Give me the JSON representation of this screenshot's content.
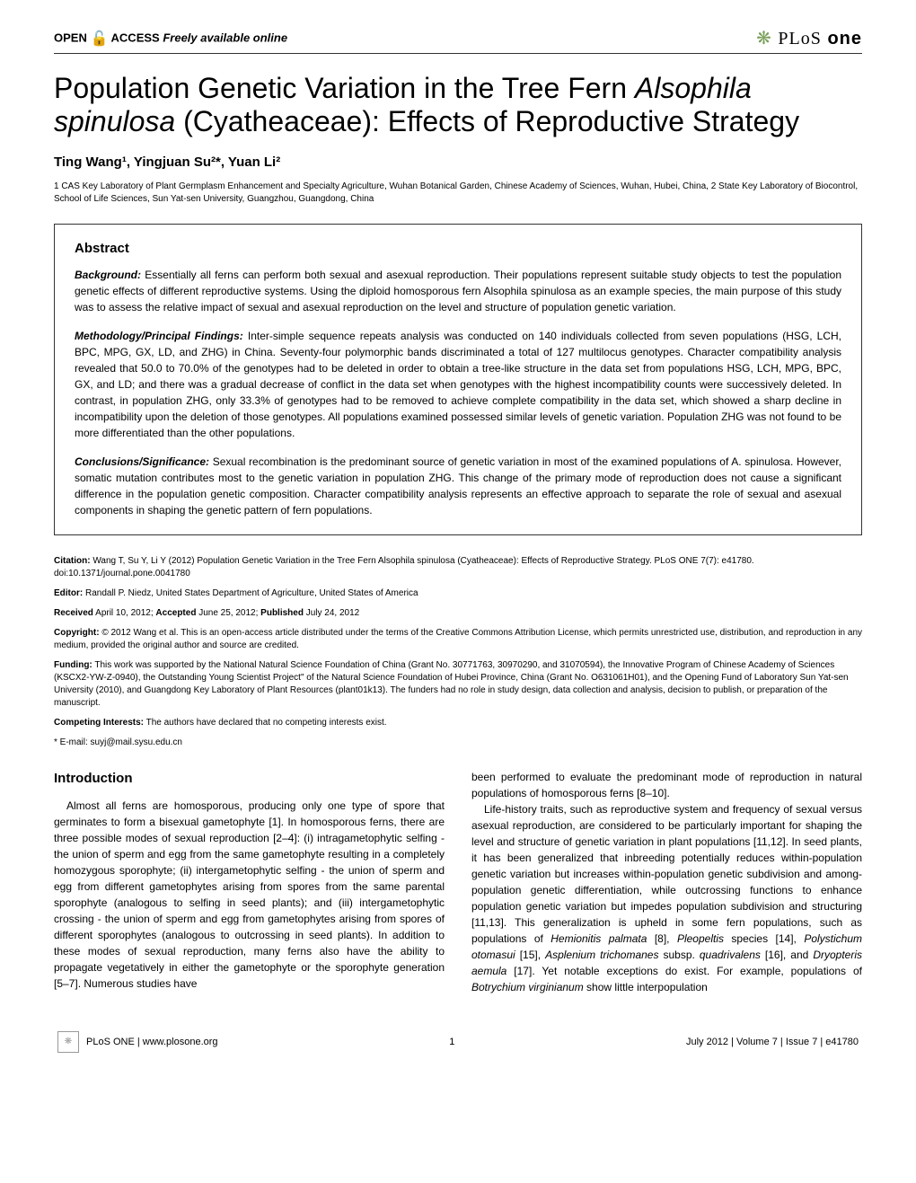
{
  "header": {
    "open_access": "OPEN",
    "access": "ACCESS",
    "freely": "Freely available online",
    "journal_plos": "PLoS",
    "journal_one": "one",
    "logo_glyph": "❋"
  },
  "title": {
    "part1": "Population Genetic Variation in the Tree Fern ",
    "species": "Alsophila spinulosa",
    "part2": " (Cyatheaceae): Effects of Reproductive Strategy"
  },
  "authors": "Ting Wang¹, Yingjuan Su²*, Yuan Li²",
  "affiliations": "1 CAS Key Laboratory of Plant Germplasm Enhancement and Specialty Agriculture, Wuhan Botanical Garden, Chinese Academy of Sciences, Wuhan, Hubei, China, 2 State Key Laboratory of Biocontrol, School of Life Sciences, Sun Yat-sen University, Guangzhou, Guangdong, China",
  "abstract": {
    "heading": "Abstract",
    "background_label": "Background:",
    "background_text": " Essentially all ferns can perform both sexual and asexual reproduction. Their populations represent suitable study objects to test the population genetic effects of different reproductive systems. Using the diploid homosporous fern Alsophila spinulosa as an example species, the main purpose of this study was to assess the relative impact of sexual and asexual reproduction on the level and structure of population genetic variation.",
    "methods_label": "Methodology/Principal Findings:",
    "methods_text": " Inter-simple sequence repeats analysis was conducted on 140 individuals collected from seven populations (HSG, LCH, BPC, MPG, GX, LD, and ZHG) in China. Seventy-four polymorphic bands discriminated a total of 127 multilocus genotypes. Character compatibility analysis revealed that 50.0 to 70.0% of the genotypes had to be deleted in order to obtain a tree-like structure in the data set from populations HSG, LCH, MPG, BPC, GX, and LD; and there was a gradual decrease of conflict in the data set when genotypes with the highest incompatibility counts were successively deleted. In contrast, in population ZHG, only 33.3% of genotypes had to be removed to achieve complete compatibility in the data set, which showed a sharp decline in incompatibility upon the deletion of those genotypes. All populations examined possessed similar levels of genetic variation. Population ZHG was not found to be more differentiated than the other populations.",
    "conclusions_label": "Conclusions/Significance:",
    "conclusions_text": " Sexual recombination is the predominant source of genetic variation in most of the examined populations of A. spinulosa. However, somatic mutation contributes most to the genetic variation in population ZHG. This change of the primary mode of reproduction does not cause a significant difference in the population genetic composition. Character compatibility analysis represents an effective approach to separate the role of sexual and asexual components in shaping the genetic pattern of fern populations."
  },
  "meta": {
    "citation_label": "Citation:",
    "citation": " Wang T, Su Y, Li Y (2012) Population Genetic Variation in the Tree Fern Alsophila spinulosa (Cyatheaceae): Effects of Reproductive Strategy. PLoS ONE 7(7): e41780. doi:10.1371/journal.pone.0041780",
    "editor_label": "Editor:",
    "editor": " Randall P. Niedz, United States Department of Agriculture, United States of America",
    "received_label": "Received",
    "received": " April 10, 2012; ",
    "accepted_label": "Accepted",
    "accepted": " June 25, 2012; ",
    "published_label": "Published",
    "published": " July 24, 2012",
    "copyright_label": "Copyright:",
    "copyright": " © 2012 Wang et al. This is an open-access article distributed under the terms of the Creative Commons Attribution License, which permits unrestricted use, distribution, and reproduction in any medium, provided the original author and source are credited.",
    "funding_label": "Funding:",
    "funding": " This work was supported by the National Natural Science Foundation of China (Grant No. 30771763, 30970290, and 31070594), the Innovative Program of Chinese Academy of Sciences (KSCX2-YW-Z-0940), the Outstanding Young Scientist Project\" of the Natural Science Foundation of Hubei Province, China (Grant No. O631061H01), and the Opening Fund of Laboratory Sun Yat-sen University (2010), and Guangdong Key Laboratory of Plant Resources (plant01k13). The funders had no role in study design, data collection and analysis, decision to publish, or preparation of the manuscript.",
    "competing_label": "Competing Interests:",
    "competing": " The authors have declared that no competing interests exist.",
    "email": "* E-mail: suyj@mail.sysu.edu.cn"
  },
  "body": {
    "intro_heading": "Introduction",
    "col1_p1": "Almost all ferns are homosporous, producing only one type of spore that germinates to form a bisexual gametophyte [1]. In homosporous ferns, there are three possible modes of sexual reproduction [2–4]: (i) intragametophytic selfing - the union of sperm and egg from the same gametophyte resulting in a completely homozygous sporophyte; (ii) intergametophytic selfing - the union of sperm and egg from different gametophytes arising from spores from the same parental sporophyte (analogous to selfing in seed plants); and (iii) intergametophytic crossing - the union of sperm and egg from gametophytes arising from spores of different sporophytes (analogous to outcrossing in seed plants). In addition to these modes of sexual reproduction, many ferns also have the ability to propagate vegetatively in either the gametophyte or the sporophyte generation [5–7]. Numerous studies have",
    "col2_p1": "been performed to evaluate the predominant mode of reproduction in natural populations of homosporous ferns [8–10].",
    "col2_p2a": "Life-history traits, such as reproductive system and frequency of sexual versus asexual reproduction, are considered to be particularly important for shaping the level and structure of genetic variation in plant populations [11,12]. In seed plants, it has been generalized that inbreeding potentially reduces within-population genetic variation but increases within-population genetic subdivision and among-population genetic differentiation, while outcrossing functions to enhance population genetic variation but impedes population subdivision and structuring [11,13]. This generalization is upheld in some fern populations, such as populations of ",
    "col2_sp1": "Hemionitis palmata",
    "col2_p2b": " [8], ",
    "col2_sp2": "Pleopeltis",
    "col2_p2c": " species [14], ",
    "col2_sp3": "Polystichum otomasui",
    "col2_p2d": " [15], ",
    "col2_sp4": "Asplenium trichomanes",
    "col2_p2e": " subsp. ",
    "col2_sp5": "quadrivalens",
    "col2_p2f": " [16], and ",
    "col2_sp6": "Dryopteris aemula",
    "col2_p2g": " [17]. Yet notable exceptions do exist. For example, populations of ",
    "col2_sp7": "Botrychium virginianum",
    "col2_p2h": " show little interpopulation"
  },
  "footer": {
    "site": "PLoS ONE | www.plosone.org",
    "page_num": "1",
    "issue": "July 2012 | Volume 7 | Issue 7 | e41780"
  }
}
